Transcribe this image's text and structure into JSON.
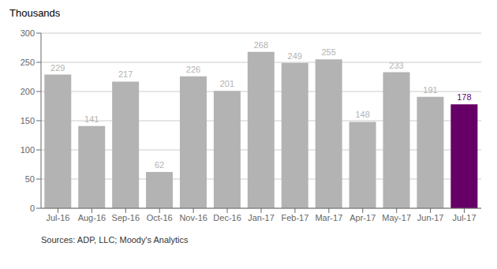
{
  "chart_data": {
    "type": "bar",
    "categories": [
      "Jul-16",
      "Aug-16",
      "Sep-16",
      "Oct-16",
      "Nov-16",
      "Dec-16",
      "Jan-17",
      "Feb-17",
      "Mar-17",
      "Apr-17",
      "May-17",
      "Jun-17",
      "Jul-17"
    ],
    "values": [
      229,
      141,
      217,
      62,
      226,
      201,
      268,
      249,
      255,
      148,
      233,
      191,
      178
    ],
    "colors": [
      "#b3b3b3",
      "#b3b3b3",
      "#b3b3b3",
      "#b3b3b3",
      "#b3b3b3",
      "#b3b3b3",
      "#b3b3b3",
      "#b3b3b3",
      "#b3b3b3",
      "#b3b3b3",
      "#b3b3b3",
      "#b3b3b3",
      "#660066"
    ],
    "ylabel": "Thousands",
    "ylim": [
      0,
      300
    ],
    "yticks": [
      0,
      50,
      100,
      150,
      200,
      250,
      300
    ],
    "grid": true,
    "data_labels": true,
    "annotations": [
      "Sources: ADP, LLC; Moody's Analytics"
    ]
  }
}
